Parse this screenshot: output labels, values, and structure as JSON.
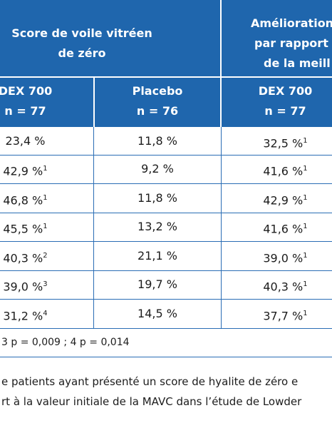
{
  "table": {
    "group_headers": [
      [
        "Score de voile vitréen",
        "de zéro"
      ],
      [
        "Amélioration",
        "par rapport",
        "de la meill"
      ]
    ],
    "columns": [
      [
        "DEX 700",
        "n = 77"
      ],
      [
        "Placebo",
        "n = 76"
      ],
      [
        "DEX 700",
        "n = 77"
      ]
    ],
    "rows": [
      [
        {
          "text": "23,4 %"
        },
        {
          "text": "11,8 %"
        },
        {
          "text": "32,5 %",
          "sup": "1"
        }
      ],
      [
        {
          "text": "42,9 %",
          "sup": "1"
        },
        {
          "text": "9,2 %"
        },
        {
          "text": "41,6 %",
          "sup": "1"
        }
      ],
      [
        {
          "text": "46,8 %",
          "sup": "1"
        },
        {
          "text": "11,8 %"
        },
        {
          "text": "42,9 %",
          "sup": "1"
        }
      ],
      [
        {
          "text": "45,5 %",
          "sup": "1"
        },
        {
          "text": "13,2 %"
        },
        {
          "text": "41,6 %",
          "sup": "1"
        }
      ],
      [
        {
          "text": "40,3 %",
          "sup": "2"
        },
        {
          "text": "21,1 %"
        },
        {
          "text": "39,0 %",
          "sup": "1"
        }
      ],
      [
        {
          "text": "39,0 %",
          "sup": "3"
        },
        {
          "text": "19,7 %"
        },
        {
          "text": "40,3 %",
          "sup": "1"
        }
      ],
      [
        {
          "text": "31,2 %",
          "sup": "4"
        },
        {
          "text": "14,5 %"
        },
        {
          "text": "37,7 %",
          "sup": "1"
        }
      ]
    ],
    "footnote": "3 p = 0,009 ; 4 p = 0,014"
  },
  "caption": [
    "e patients ayant présenté un score de hyalite de zéro e",
    "rt à la valeur initiale de la MAVC dans l’étude de Lowder"
  ]
}
